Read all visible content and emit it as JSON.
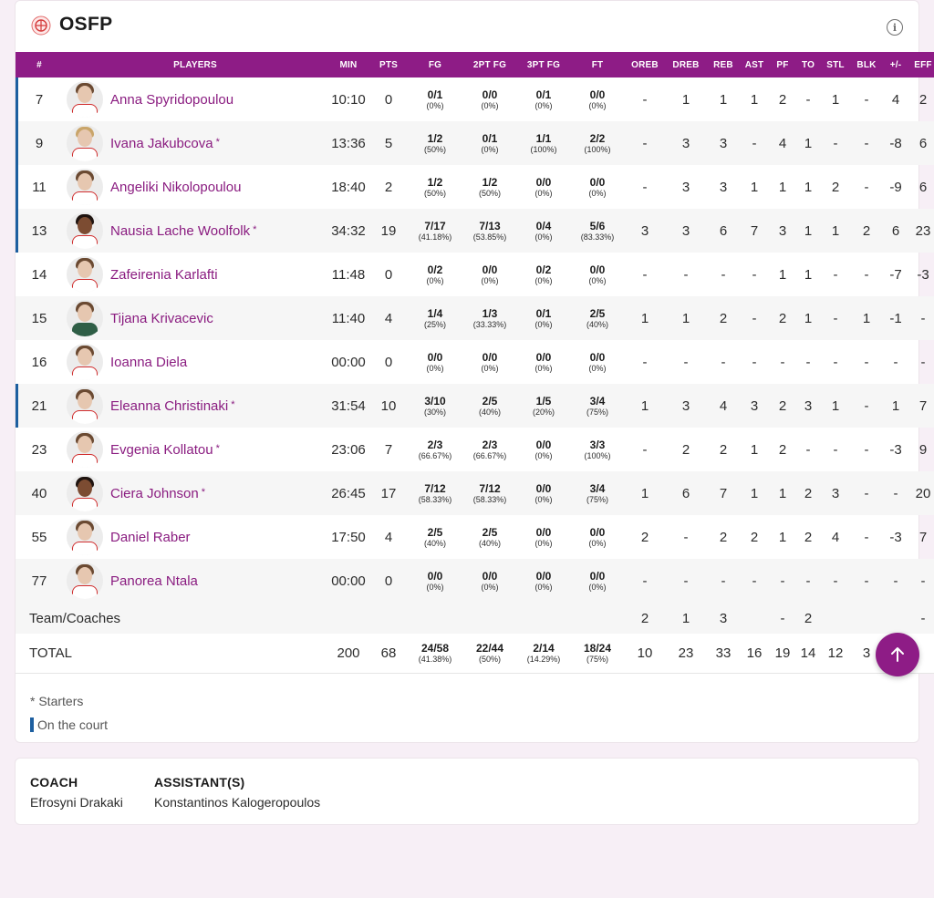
{
  "team": {
    "name": "OSFP"
  },
  "headers": [
    "#",
    "PLAYERS",
    "MIN",
    "PTS",
    "FG",
    "2PT FG",
    "3PT FG",
    "FT",
    "OREB",
    "DREB",
    "REB",
    "AST",
    "PF",
    "TO",
    "STL",
    "BLK",
    "+/-",
    "EFF"
  ],
  "players": [
    {
      "num": "7",
      "name": "Anna Spyridopoulou",
      "starter": false,
      "on_court": true,
      "min": "10:10",
      "pts": "0",
      "fg": [
        "0/1",
        "(0%)"
      ],
      "fg2": [
        "0/0",
        "(0%)"
      ],
      "fg3": [
        "0/1",
        "(0%)"
      ],
      "ft": [
        "0/0",
        "(0%)"
      ],
      "oreb": "-",
      "dreb": "1",
      "reb": "1",
      "ast": "1",
      "pf": "2",
      "to": "-",
      "stl": "1",
      "blk": "-",
      "pm": "4",
      "eff": "2"
    },
    {
      "num": "9",
      "name": "Ivana Jakubcova",
      "starter": true,
      "on_court": true,
      "min": "13:36",
      "pts": "5",
      "fg": [
        "1/2",
        "(50%)"
      ],
      "fg2": [
        "0/1",
        "(0%)"
      ],
      "fg3": [
        "1/1",
        "(100%)"
      ],
      "ft": [
        "2/2",
        "(100%)"
      ],
      "oreb": "-",
      "dreb": "3",
      "reb": "3",
      "ast": "-",
      "pf": "4",
      "to": "1",
      "stl": "-",
      "blk": "-",
      "pm": "-8",
      "eff": "6"
    },
    {
      "num": "11",
      "name": "Angeliki Nikolopoulou",
      "starter": false,
      "on_court": true,
      "min": "18:40",
      "pts": "2",
      "fg": [
        "1/2",
        "(50%)"
      ],
      "fg2": [
        "1/2",
        "(50%)"
      ],
      "fg3": [
        "0/0",
        "(0%)"
      ],
      "ft": [
        "0/0",
        "(0%)"
      ],
      "oreb": "-",
      "dreb": "3",
      "reb": "3",
      "ast": "1",
      "pf": "1",
      "to": "1",
      "stl": "2",
      "blk": "-",
      "pm": "-9",
      "eff": "6"
    },
    {
      "num": "13",
      "name": "Nausia Lache Woolfolk",
      "starter": true,
      "on_court": true,
      "min": "34:32",
      "pts": "19",
      "fg": [
        "7/17",
        "(41.18%)"
      ],
      "fg2": [
        "7/13",
        "(53.85%)"
      ],
      "fg3": [
        "0/4",
        "(0%)"
      ],
      "ft": [
        "5/6",
        "(83.33%)"
      ],
      "oreb": "3",
      "dreb": "3",
      "reb": "6",
      "ast": "7",
      "pf": "3",
      "to": "1",
      "stl": "1",
      "blk": "2",
      "pm": "6",
      "eff": "23"
    },
    {
      "num": "14",
      "name": "Zafeirenia Karlafti",
      "starter": false,
      "on_court": false,
      "min": "11:48",
      "pts": "0",
      "fg": [
        "0/2",
        "(0%)"
      ],
      "fg2": [
        "0/0",
        "(0%)"
      ],
      "fg3": [
        "0/2",
        "(0%)"
      ],
      "ft": [
        "0/0",
        "(0%)"
      ],
      "oreb": "-",
      "dreb": "-",
      "reb": "-",
      "ast": "-",
      "pf": "1",
      "to": "1",
      "stl": "-",
      "blk": "-",
      "pm": "-7",
      "eff": "-3"
    },
    {
      "num": "15",
      "name": "Tijana Krivacevic",
      "starter": false,
      "on_court": false,
      "min": "11:40",
      "pts": "4",
      "fg": [
        "1/4",
        "(25%)"
      ],
      "fg2": [
        "1/3",
        "(33.33%)"
      ],
      "fg3": [
        "0/1",
        "(0%)"
      ],
      "ft": [
        "2/5",
        "(40%)"
      ],
      "oreb": "1",
      "dreb": "1",
      "reb": "2",
      "ast": "-",
      "pf": "2",
      "to": "1",
      "stl": "-",
      "blk": "1",
      "pm": "-1",
      "eff": "-"
    },
    {
      "num": "16",
      "name": "Ioanna Diela",
      "starter": false,
      "on_court": false,
      "min": "00:00",
      "pts": "0",
      "fg": [
        "0/0",
        "(0%)"
      ],
      "fg2": [
        "0/0",
        "(0%)"
      ],
      "fg3": [
        "0/0",
        "(0%)"
      ],
      "ft": [
        "0/0",
        "(0%)"
      ],
      "oreb": "-",
      "dreb": "-",
      "reb": "-",
      "ast": "-",
      "pf": "-",
      "to": "-",
      "stl": "-",
      "blk": "-",
      "pm": "-",
      "eff": "-"
    },
    {
      "num": "21",
      "name": "Eleanna Christinaki",
      "starter": true,
      "on_court": true,
      "min": "31:54",
      "pts": "10",
      "fg": [
        "3/10",
        "(30%)"
      ],
      "fg2": [
        "2/5",
        "(40%)"
      ],
      "fg3": [
        "1/5",
        "(20%)"
      ],
      "ft": [
        "3/4",
        "(75%)"
      ],
      "oreb": "1",
      "dreb": "3",
      "reb": "4",
      "ast": "3",
      "pf": "2",
      "to": "3",
      "stl": "1",
      "blk": "-",
      "pm": "1",
      "eff": "7"
    },
    {
      "num": "23",
      "name": "Evgenia Kollatou",
      "starter": true,
      "on_court": false,
      "min": "23:06",
      "pts": "7",
      "fg": [
        "2/3",
        "(66.67%)"
      ],
      "fg2": [
        "2/3",
        "(66.67%)"
      ],
      "fg3": [
        "0/0",
        "(0%)"
      ],
      "ft": [
        "3/3",
        "(100%)"
      ],
      "oreb": "-",
      "dreb": "2",
      "reb": "2",
      "ast": "1",
      "pf": "2",
      "to": "-",
      "stl": "-",
      "blk": "-",
      "pm": "-3",
      "eff": "9"
    },
    {
      "num": "40",
      "name": "Ciera Johnson",
      "starter": true,
      "on_court": false,
      "min": "26:45",
      "pts": "17",
      "fg": [
        "7/12",
        "(58.33%)"
      ],
      "fg2": [
        "7/12",
        "(58.33%)"
      ],
      "fg3": [
        "0/0",
        "(0%)"
      ],
      "ft": [
        "3/4",
        "(75%)"
      ],
      "oreb": "1",
      "dreb": "6",
      "reb": "7",
      "ast": "1",
      "pf": "1",
      "to": "2",
      "stl": "3",
      "blk": "-",
      "pm": "-",
      "eff": "20"
    },
    {
      "num": "55",
      "name": "Daniel Raber",
      "starter": false,
      "on_court": false,
      "min": "17:50",
      "pts": "4",
      "fg": [
        "2/5",
        "(40%)"
      ],
      "fg2": [
        "2/5",
        "(40%)"
      ],
      "fg3": [
        "0/0",
        "(0%)"
      ],
      "ft": [
        "0/0",
        "(0%)"
      ],
      "oreb": "2",
      "dreb": "-",
      "reb": "2",
      "ast": "2",
      "pf": "1",
      "to": "2",
      "stl": "4",
      "blk": "-",
      "pm": "-3",
      "eff": "7"
    },
    {
      "num": "77",
      "name": "Panorea Ntala",
      "starter": false,
      "on_court": false,
      "min": "00:00",
      "pts": "0",
      "fg": [
        "0/0",
        "(0%)"
      ],
      "fg2": [
        "0/0",
        "(0%)"
      ],
      "fg3": [
        "0/0",
        "(0%)"
      ],
      "ft": [
        "0/0",
        "(0%)"
      ],
      "oreb": "-",
      "dreb": "-",
      "reb": "-",
      "ast": "-",
      "pf": "-",
      "to": "-",
      "stl": "-",
      "blk": "-",
      "pm": "-",
      "eff": "-"
    }
  ],
  "team_row": {
    "label": "Team/Coaches",
    "oreb": "2",
    "dreb": "1",
    "reb": "3",
    "ast": "",
    "pf": "-",
    "to": "2",
    "stl": "",
    "blk": "",
    "pm": "",
    "eff": "-"
  },
  "total_row": {
    "label": "TOTAL",
    "min": "200",
    "pts": "68",
    "fg": [
      "24/58",
      "(41.38%)"
    ],
    "fg2": [
      "22/44",
      "(50%)"
    ],
    "fg3": [
      "2/14",
      "(14.29%)"
    ],
    "ft": [
      "18/24",
      "(75%)"
    ],
    "oreb": "10",
    "dreb": "23",
    "reb": "33",
    "ast": "16",
    "pf": "19",
    "to": "14",
    "stl": "12",
    "blk": "3",
    "pm": "",
    "eff": ""
  },
  "legend": {
    "starters": "* Starters",
    "on_court": "On the court"
  },
  "starter_mark": "*",
  "staff": {
    "coach_label": "COACH",
    "coach_name": "Efrosyni Drakaki",
    "assistant_label": "ASSISTANT(S)",
    "assistant_name": "Konstantinos Kalogeropoulos"
  },
  "icons": {
    "info": "info-icon",
    "scroll_top": "arrow-up-icon",
    "logo": "team-logo-icon"
  },
  "colors": {
    "accent": "#8e1c86",
    "player_link": "#8a1c80",
    "on_court": "#1d5fa0"
  }
}
